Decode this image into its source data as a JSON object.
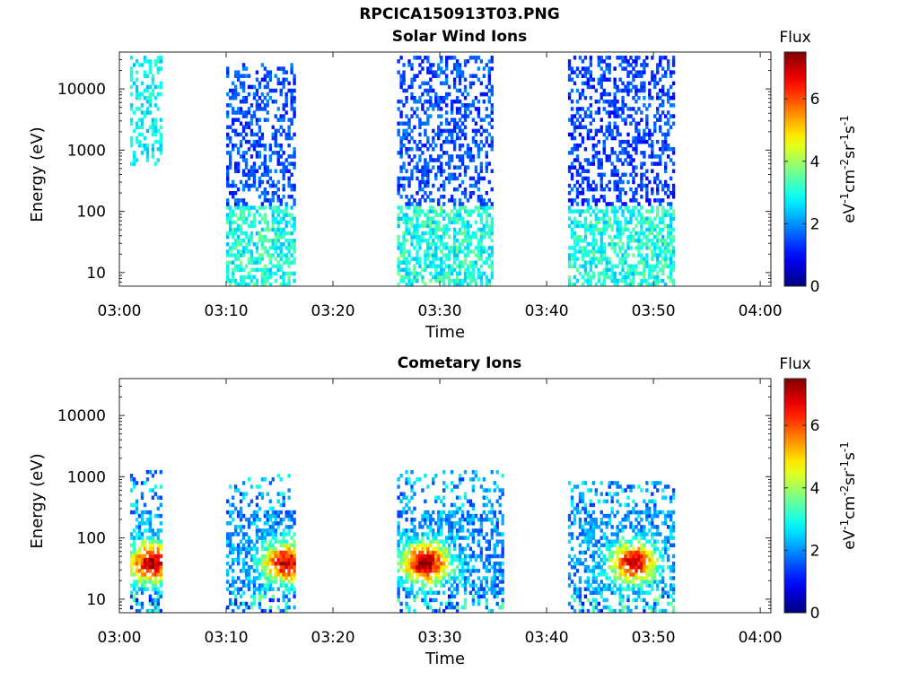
{
  "figure": {
    "title": "RPCICA150913T03.PNG"
  },
  "chart_data": [
    {
      "type": "heatmap",
      "title": "Solar Wind Ions",
      "xlabel": "Time",
      "ylabel": "Energy (eV)",
      "x_ticks": [
        "03:00",
        "03:10",
        "03:20",
        "03:30",
        "03:40",
        "03:50",
        "04:00"
      ],
      "xlim": [
        "03:00",
        "04:01"
      ],
      "y_scale": "log",
      "y_ticks": [
        "10",
        "100",
        "1000",
        "10000"
      ],
      "ylim": [
        6,
        40000
      ],
      "colorbar": {
        "title": "Flux",
        "label": "eV-1cm-2sr-1s-1",
        "range": [
          0,
          7.5
        ],
        "ticks": [
          "0",
          "2",
          "4",
          "6"
        ],
        "colormap": "jet"
      },
      "bursts": [
        {
          "start": "03:01",
          "end": "03:04",
          "emin": 600,
          "emax": 35000,
          "level": 2.3,
          "hot_emax": 0
        },
        {
          "start": "03:10",
          "end": "03:16.5",
          "emin": 6,
          "emax": 25000,
          "level": 1.0,
          "hot_emax": 120
        },
        {
          "start": "03:26",
          "end": "03:35",
          "emin": 6,
          "emax": 35000,
          "level": 1.0,
          "hot_emax": 120
        },
        {
          "start": "03:42",
          "end": "03:52",
          "emin": 6,
          "emax": 35000,
          "level": 0.9,
          "hot_emax": 120
        }
      ]
    },
    {
      "type": "heatmap",
      "title": "Cometary Ions",
      "xlabel": "Time",
      "ylabel": "Energy (eV)",
      "x_ticks": [
        "03:00",
        "03:10",
        "03:20",
        "03:30",
        "03:40",
        "03:50",
        "04:00"
      ],
      "xlim": [
        "03:00",
        "04:01"
      ],
      "y_scale": "log",
      "y_ticks": [
        "10",
        "100",
        "1000",
        "10000"
      ],
      "ylim": [
        6,
        40000
      ],
      "colorbar": {
        "title": "Flux",
        "label": "eV-1cm-2sr-1s-1",
        "range": [
          0,
          7.5
        ],
        "ticks": [
          "0",
          "2",
          "4",
          "6"
        ],
        "colormap": "jet"
      },
      "bursts": [
        {
          "start": "03:01",
          "end": "03:04",
          "emin": 6,
          "emax": 1200,
          "peak_time": "03:03",
          "peak_energy": 40,
          "peak_level": 7.2
        },
        {
          "start": "03:10",
          "end": "03:16.5",
          "emin": 6,
          "emax": 1100,
          "peak_time": "03:15.5",
          "peak_energy": 40,
          "peak_level": 7.0
        },
        {
          "start": "03:26",
          "end": "03:36",
          "emin": 6,
          "emax": 1300,
          "peak_time": "03:28.5",
          "peak_energy": 40,
          "peak_level": 7.3
        },
        {
          "start": "03:42",
          "end": "03:52",
          "emin": 6,
          "emax": 800,
          "peak_time": "03:48",
          "peak_energy": 40,
          "peak_level": 6.8
        }
      ]
    }
  ]
}
